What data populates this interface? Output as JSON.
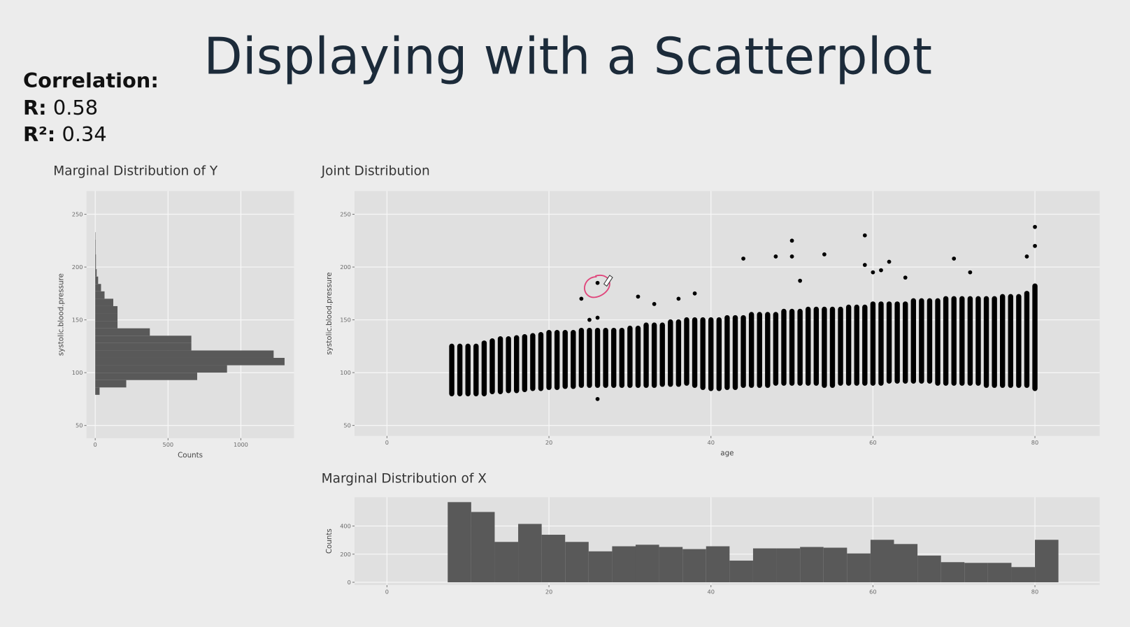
{
  "title": "Displaying with a Scatterplot",
  "stats": {
    "heading": "Correlation:",
    "r_name": "R:",
    "r_value": 0.58,
    "r2_name": "R²:",
    "r2_value": 0.34
  },
  "chart_data": [
    {
      "type": "histogram",
      "orientation": "horizontal",
      "title": "Marginal Distribution of Y",
      "xlabel": "Counts",
      "ylabel": "systolic.blood.pressure",
      "color": "#595959",
      "grid": true,
      "bins": [
        79,
        86,
        93,
        100,
        107,
        114,
        121,
        128,
        135,
        142,
        149,
        156,
        163,
        170,
        177,
        184,
        191,
        198,
        205,
        212,
        219,
        226,
        233
      ],
      "values": [
        30,
        213,
        700,
        905,
        1300,
        1225,
        660,
        660,
        375,
        153,
        153,
        153,
        124,
        64,
        40,
        20,
        10,
        5,
        5,
        3,
        3,
        2
      ],
      "xlim": [
        -60,
        1365
      ],
      "xticks": [
        0,
        500,
        1000
      ],
      "ylim": [
        38,
        272
      ],
      "yticks": [
        50,
        100,
        150,
        200,
        250
      ]
    },
    {
      "type": "scatter",
      "title": "Joint Distribution",
      "xlabel": "age",
      "ylabel": "systolic.blood.pressure",
      "color": "#000000",
      "grid": true,
      "x": [
        8,
        9,
        10,
        11,
        12,
        13,
        14,
        15,
        16,
        17,
        18,
        19,
        20,
        21,
        22,
        23,
        24,
        25,
        26,
        27,
        28,
        29,
        30,
        31,
        32,
        33,
        34,
        35,
        36,
        37,
        38,
        39,
        40,
        41,
        42,
        43,
        44,
        45,
        46,
        47,
        48,
        49,
        50,
        51,
        52,
        53,
        54,
        55,
        56,
        57,
        58,
        59,
        60,
        61,
        62,
        63,
        64,
        65,
        66,
        67,
        68,
        69,
        70,
        71,
        72,
        73,
        74,
        75,
        76,
        77,
        78,
        79,
        80
      ],
      "y_low": [
        80,
        80,
        80,
        80,
        80,
        82,
        82,
        83,
        83,
        84,
        85,
        85,
        86,
        86,
        87,
        87,
        88,
        88,
        88,
        88,
        88,
        88,
        88,
        88,
        88,
        88,
        89,
        89,
        89,
        90,
        88,
        86,
        85,
        85,
        86,
        86,
        88,
        88,
        88,
        88,
        90,
        90,
        90,
        90,
        90,
        90,
        88,
        88,
        90,
        90,
        90,
        90,
        90,
        90,
        92,
        92,
        92,
        92,
        92,
        92,
        90,
        90,
        90,
        90,
        90,
        90,
        88,
        88,
        88,
        88,
        88,
        88,
        85
      ],
      "y_high": [
        125,
        125,
        125,
        125,
        128,
        130,
        132,
        132,
        133,
        134,
        135,
        136,
        138,
        138,
        138,
        138,
        140,
        140,
        140,
        140,
        140,
        140,
        142,
        142,
        145,
        145,
        145,
        148,
        148,
        150,
        150,
        150,
        150,
        150,
        152,
        152,
        152,
        155,
        155,
        155,
        155,
        158,
        158,
        158,
        160,
        160,
        160,
        160,
        160,
        162,
        162,
        162,
        165,
        165,
        165,
        165,
        165,
        168,
        168,
        168,
        168,
        170,
        170,
        170,
        170,
        170,
        170,
        170,
        172,
        172,
        172,
        175,
        182
      ],
      "points": {
        "x": [
          24,
          25,
          26,
          26,
          26,
          31,
          33,
          36,
          38,
          44,
          48,
          50,
          50,
          51,
          54,
          59,
          59,
          60,
          61,
          62,
          64,
          70,
          72,
          79,
          80,
          80
        ],
        "y": [
          170,
          150,
          185,
          152,
          75,
          172,
          165,
          170,
          175,
          208,
          210,
          225,
          210,
          187,
          212,
          230,
          202,
          195,
          197,
          205,
          190,
          208,
          195,
          210,
          238,
          220
        ]
      },
      "xlim": [
        -4,
        88
      ],
      "xticks": [
        0,
        20,
        40,
        60,
        80
      ],
      "ylim": [
        40,
        272
      ],
      "yticks": [
        50,
        100,
        150,
        200,
        250
      ]
    },
    {
      "type": "histogram",
      "orientation": "vertical",
      "title": "Marginal Distribution of X",
      "ylabel": "Counts",
      "color": "#595959",
      "grid": true,
      "bins": [
        7.5,
        10.4,
        13.3,
        16.2,
        19.1,
        22,
        24.9,
        27.8,
        30.7,
        33.6,
        36.5,
        39.4,
        42.3,
        45.2,
        48.1,
        51,
        53.9,
        56.8,
        59.7,
        62.6,
        65.5,
        68.4,
        71.3,
        74.2,
        77.1,
        80,
        82.9
      ],
      "values": [
        570,
        500,
        287,
        415,
        338,
        287,
        220,
        256,
        267,
        251,
        236,
        256,
        154,
        241,
        241,
        251,
        246,
        205,
        302,
        272,
        190,
        143,
        138,
        138,
        108,
        302
      ],
      "xlim": [
        -4,
        88
      ],
      "xticks": [
        0,
        20,
        40,
        60,
        80
      ],
      "ylim": [
        -20,
        605
      ],
      "yticks": [
        0,
        200,
        400
      ]
    }
  ]
}
